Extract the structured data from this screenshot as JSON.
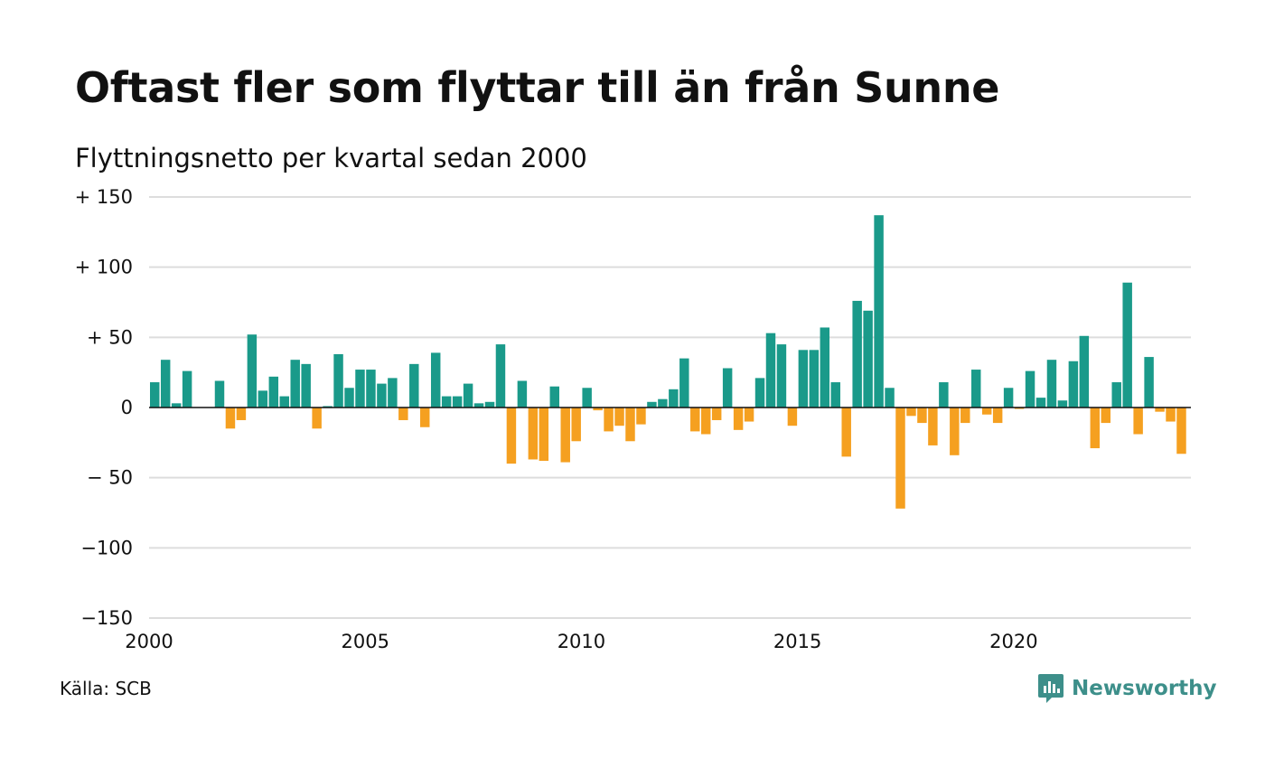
{
  "title": "Oftast fler som flyttar till än från Sunne",
  "subtitle": "Flyttningsnetto per kvartal sedan 2000",
  "source": "Källa: SCB",
  "brand": {
    "name": "Newsworthy",
    "icon": "newsworthy-logo-icon",
    "color": "#3d8f8a"
  },
  "chart_data": {
    "type": "bar",
    "title": "Oftast fler som flyttar till än från Sunne",
    "subtitle": "Flyttningsnetto per kvartal sedan 2000",
    "x_start": 2000,
    "x_step": 0.25,
    "x_ticks": [
      {
        "value": 2000,
        "label": "2000"
      },
      {
        "value": 2005,
        "label": "2005"
      },
      {
        "value": 2010,
        "label": "2010"
      },
      {
        "value": 2015,
        "label": "2015"
      },
      {
        "value": 2020,
        "label": "2020"
      }
    ],
    "xlim": [
      2000,
      2024.1
    ],
    "ylim": [
      -150,
      150
    ],
    "y_ticks": [
      {
        "value": 150,
        "label": "+ 150"
      },
      {
        "value": 100,
        "label": "+ 100"
      },
      {
        "value": 50,
        "label": "+  50"
      },
      {
        "value": 0,
        "label": "0"
      },
      {
        "value": -50,
        "label": "− 50"
      },
      {
        "value": -100,
        "label": "−100"
      },
      {
        "value": -150,
        "label": "−150"
      }
    ],
    "grid": true,
    "colors": {
      "positive": "#1a9a8a",
      "negative": "#f5a020",
      "grid": "#dddddd"
    },
    "values": [
      18,
      34,
      3,
      26,
      0,
      0,
      19,
      -15,
      -9,
      52,
      12,
      22,
      8,
      34,
      31,
      -15,
      1,
      38,
      14,
      27,
      27,
      17,
      21,
      -9,
      31,
      -14,
      39,
      8,
      8,
      17,
      3,
      4,
      45,
      -40,
      19,
      -37,
      -38,
      15,
      -39,
      -24,
      14,
      -2,
      -17,
      -13,
      -24,
      -12,
      4,
      6,
      13,
      35,
      -17,
      -19,
      -9,
      28,
      -16,
      -10,
      21,
      53,
      45,
      -13,
      41,
      41,
      57,
      18,
      -35,
      76,
      69,
      137,
      14,
      -72,
      -6,
      -11,
      -27,
      18,
      -34,
      -11,
      27,
      -5,
      -11,
      14,
      -1,
      26,
      7,
      34,
      5,
      33,
      51,
      -29,
      -11,
      18,
      89,
      -19,
      36,
      -3,
      -10,
      -33
    ]
  }
}
